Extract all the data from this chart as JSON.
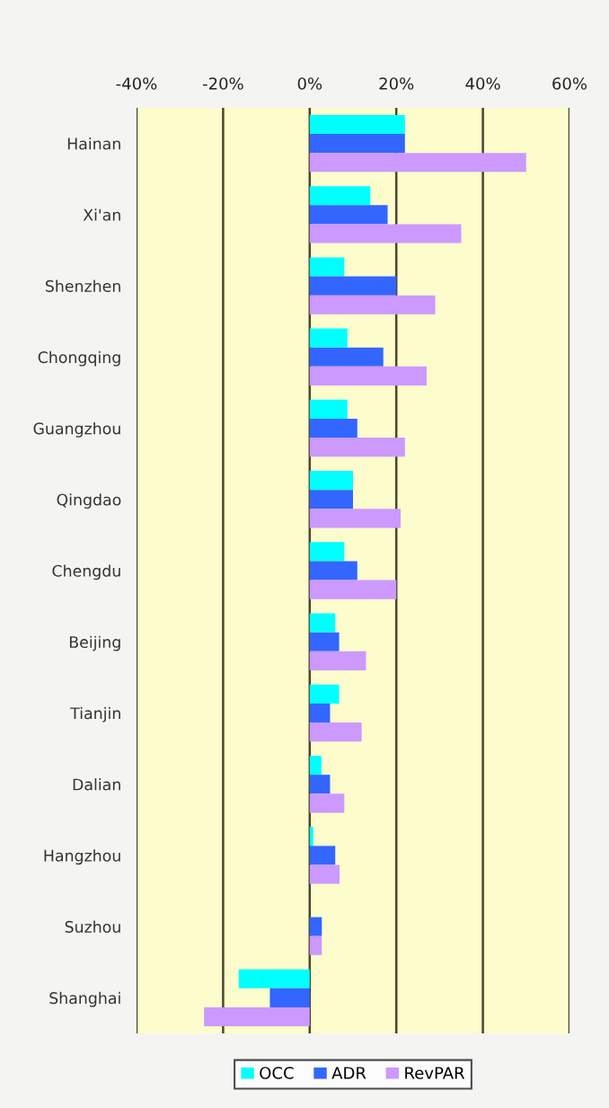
{
  "chart_data": {
    "type": "bar",
    "orientation": "horizontal",
    "categories": [
      "Hainan",
      "Xi'an",
      "Shenzhen",
      "Chongqing",
      "Guangzhou",
      "Qingdao",
      "Chengdu",
      "Beijing",
      "Tianjin",
      "Dalian",
      "Hangzhou",
      "Suzhou",
      "Shanghai"
    ],
    "series": [
      {
        "name": "OCC",
        "color": "#00ffff",
        "values": [
          22,
          14,
          8,
          8.7,
          8.7,
          10,
          8,
          5.9,
          6.8,
          2.7,
          0.8,
          0,
          -16.4
        ]
      },
      {
        "name": "ADR",
        "color": "#3366ff",
        "values": [
          22,
          18,
          20,
          17,
          11,
          10,
          11,
          6.8,
          4.7,
          4.7,
          5.9,
          2.8,
          -9.2
        ]
      },
      {
        "name": "RevPAR",
        "color": "#cc99ff",
        "values": [
          50,
          35,
          29,
          27,
          22,
          21,
          20,
          13,
          12,
          8,
          6.9,
          2.8,
          -24.4
        ]
      }
    ],
    "xlim": [
      -40,
      60
    ],
    "xticks": [
      {
        "value": -40,
        "label": "-40%"
      },
      {
        "value": -20,
        "label": "-20%"
      },
      {
        "value": 0,
        "label": "0%"
      },
      {
        "value": 20,
        "label": "20%"
      },
      {
        "value": 40,
        "label": "40%"
      },
      {
        "value": 60,
        "label": "60%"
      }
    ],
    "grid": "x",
    "legend": "bottom"
  }
}
